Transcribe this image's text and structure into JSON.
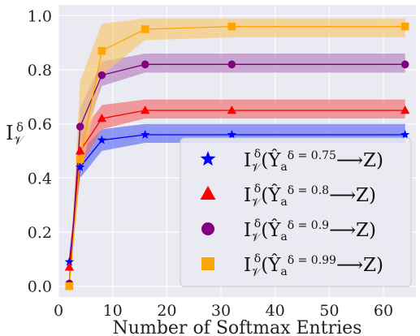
{
  "chart_data": {
    "type": "line",
    "xlabel": "Number of Softmax Entries",
    "ylabel": "I",
    "ylabel_sup": "δ",
    "ylabel_sub": "𝒱",
    "xlim": [
      0,
      66
    ],
    "ylim": [
      -0.04,
      1.04
    ],
    "xticks": [
      0,
      10,
      20,
      30,
      40,
      50,
      60
    ],
    "yticks": [
      0.0,
      0.2,
      0.4,
      0.6,
      0.8,
      1.0
    ],
    "ytick_labels": [
      "0.0",
      "0.2",
      "0.4",
      "0.6",
      "0.8",
      "1.0"
    ],
    "grid": true,
    "background": "#eaeaf2",
    "legend_position": "lower-right",
    "x": [
      2,
      4,
      8,
      16,
      32,
      64
    ],
    "series": [
      {
        "name": "δ = 0.75",
        "legend": {
          "i": "I",
          "sup": "δ",
          "sub": "𝒱",
          "open": "(",
          "yhat": "Ŷ",
          "a": "a",
          "delta": "δ = 0.75",
          "arrow": "⟶",
          "z": "Z",
          "close": ")"
        },
        "marker": "star",
        "color": "#0000ff",
        "band": "#5c6cf5",
        "values": [
          0.09,
          0.44,
          0.54,
          0.56,
          0.56,
          0.56
        ],
        "lower": [
          0.06,
          0.4,
          0.5,
          0.53,
          0.53,
          0.53
        ],
        "upper": [
          0.12,
          0.5,
          0.58,
          0.6,
          0.6,
          0.6
        ]
      },
      {
        "name": "δ = 0.8",
        "legend": {
          "i": "I",
          "sup": "δ",
          "sub": "𝒱",
          "open": "(",
          "yhat": "Ŷ",
          "a": "a",
          "delta": "δ = 0.8",
          "arrow": "⟶",
          "z": "Z",
          "close": ")"
        },
        "marker": "triangle",
        "color": "#ff0000",
        "band": "#f26a6a",
        "values": [
          0.07,
          0.5,
          0.62,
          0.65,
          0.65,
          0.65
        ],
        "lower": [
          0.04,
          0.44,
          0.58,
          0.62,
          0.62,
          0.62
        ],
        "upper": [
          0.1,
          0.56,
          0.67,
          0.69,
          0.69,
          0.69
        ]
      },
      {
        "name": "δ = 0.9",
        "legend": {
          "i": "I",
          "sup": "δ",
          "sub": "𝒱",
          "open": "(",
          "yhat": "Ŷ",
          "a": "a",
          "delta": "δ = 0.9",
          "arrow": "⟶",
          "z": "Z",
          "close": ")"
        },
        "marker": "circle",
        "color": "#800080",
        "band": "#b57ebf",
        "values": [
          0.01,
          0.59,
          0.78,
          0.82,
          0.82,
          0.82
        ],
        "lower": [
          0.0,
          0.52,
          0.74,
          0.79,
          0.79,
          0.79
        ],
        "upper": [
          0.03,
          0.66,
          0.83,
          0.86,
          0.86,
          0.86
        ]
      },
      {
        "name": "δ = 0.99",
        "legend": {
          "i": "I",
          "sup": "δ",
          "sub": "𝒱",
          "open": "(",
          "yhat": "Ŷ",
          "a": "a",
          "delta": "δ = 0.99",
          "arrow": "⟶",
          "z": "Z",
          "close": ")"
        },
        "marker": "square",
        "color": "#ffa500",
        "band": "#f7c66a",
        "values": [
          0.0,
          0.47,
          0.87,
          0.95,
          0.96,
          0.96
        ],
        "lower": [
          0.0,
          0.4,
          0.78,
          0.91,
          0.92,
          0.92
        ],
        "upper": [
          0.02,
          0.76,
          0.97,
          0.99,
          0.99,
          0.99
        ]
      }
    ]
  }
}
